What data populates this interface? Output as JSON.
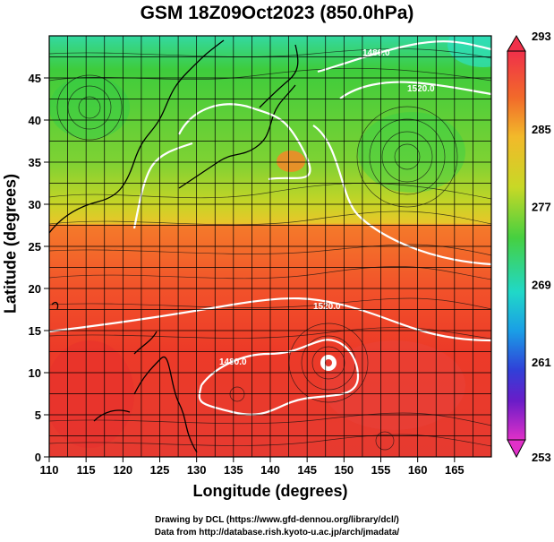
{
  "title": "GSM 18Z09Oct2023 (850.0hPa)",
  "axes": {
    "xlabel": "Longitude (degrees)",
    "ylabel": "Latitude  (degrees)",
    "xlim": [
      110,
      170
    ],
    "ylim": [
      0,
      50
    ],
    "xticks": [
      "110",
      "115",
      "120",
      "125",
      "130",
      "135",
      "140",
      "145",
      "150",
      "155",
      "160",
      "165"
    ],
    "yticks": [
      "0",
      "5",
      "10",
      "15",
      "20",
      "25",
      "30",
      "35",
      "40",
      "45"
    ]
  },
  "colorbar": {
    "labels": [
      "293",
      "285",
      "277",
      "269",
      "261",
      "253"
    ],
    "range": [
      253,
      293
    ]
  },
  "contours": {
    "labels": [
      "1480.0",
      "1520.0",
      "1520.0",
      "1480.0"
    ]
  },
  "credits": {
    "line1": "Drawing by DCL (https://www.gfd-dennou.org/library/dcl/)",
    "line2": "Data from http://database.rish.kyoto-u.ac.jp/arch/jmadata/"
  }
}
